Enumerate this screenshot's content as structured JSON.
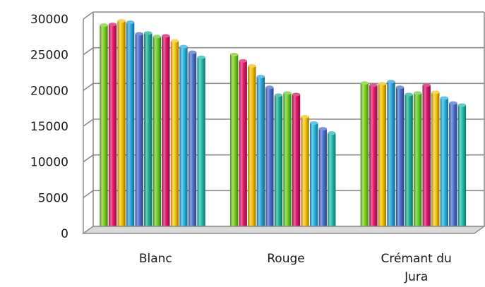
{
  "chart_data": {
    "type": "bar",
    "categories": [
      "Blanc",
      "Rouge",
      "Crémant du Jura"
    ],
    "category_label_lines": [
      [
        "Blanc"
      ],
      [
        "Rouge"
      ],
      [
        "Crémant du",
        "Jura"
      ]
    ],
    "ylim": [
      0,
      30000
    ],
    "yticks": [
      0,
      5000,
      10000,
      15000,
      20000,
      25000,
      30000
    ],
    "grid": true,
    "three_d": true,
    "series": [
      {
        "color": "#7ed321",
        "values": [
          28700,
          24600,
          20600
        ]
      },
      {
        "color": "#e8196b",
        "values": [
          28800,
          23700,
          20300
        ]
      },
      {
        "color": "#f7c300",
        "values": [
          29300,
          23000,
          20500
        ]
      },
      {
        "color": "#29a9e0",
        "values": [
          29100,
          21500,
          20800
        ]
      },
      {
        "color": "#4b6fd1",
        "values": [
          27500,
          20000,
          20000
        ]
      },
      {
        "color": "#1fb39a",
        "values": [
          27600,
          18900,
          19000
        ]
      },
      {
        "color": "#6ccf2a",
        "values": [
          27100,
          19200,
          19200
        ]
      },
      {
        "color": "#e0166a",
        "values": [
          27200,
          19000,
          20300
        ]
      },
      {
        "color": "#f9c80e",
        "values": [
          26500,
          15900,
          19300
        ]
      },
      {
        "color": "#26b6e8",
        "values": [
          25700,
          15000,
          18500
        ]
      },
      {
        "color": "#4f73d4",
        "values": [
          24900,
          14200,
          17800
        ]
      },
      {
        "color": "#22c0b0",
        "values": [
          24200,
          13600,
          17500
        ]
      }
    ]
  }
}
